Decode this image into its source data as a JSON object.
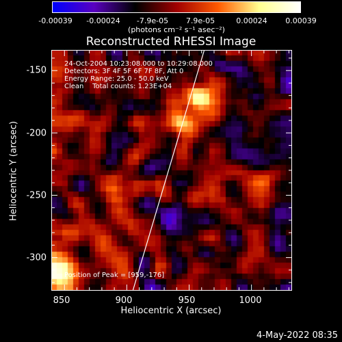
{
  "colorbar": {
    "tick_labels": [
      "-0.00039",
      "-0.00024",
      "-7.9e-05",
      "7.9e-05",
      "0.00024",
      "0.00039"
    ],
    "units": "(photons cm⁻² s⁻¹ asec⁻²)",
    "range": [
      -0.00039,
      0.00039
    ],
    "colors": [
      "#0000ff",
      "#5a00c0",
      "#000000",
      "#a00000",
      "#ff5a00",
      "#ffff90",
      "#ffffff"
    ]
  },
  "title": "Reconstructed RHESSI Image",
  "info": {
    "time_range": "24-Oct-2004 10:23:08.000 to 10:29:08.000",
    "detectors": "Detectors: 3F 4F 5F 6F 7F 8F, Att 0",
    "energy": "Energy Range: 25.0 - 50.0 keV",
    "clean": "Clean    Total counts: 1.23E+04",
    "peak": "Position of Peak = [959,-176]"
  },
  "axes": {
    "xlabel": "Heliocentric X (arcsec)",
    "ylabel": "Heliocentric Y (arcsec)",
    "x_ticks": [
      "850",
      "900",
      "950",
      "1000"
    ],
    "y_ticks": [
      "-150",
      "-200",
      "-250",
      "-300"
    ],
    "xlim": [
      840,
      1032
    ],
    "ylim": [
      -326,
      -134
    ]
  },
  "limb": {
    "x": [
      905,
      962
    ],
    "y": [
      -326,
      -134
    ]
  },
  "timestamp": "4-May-2022 08:35"
}
